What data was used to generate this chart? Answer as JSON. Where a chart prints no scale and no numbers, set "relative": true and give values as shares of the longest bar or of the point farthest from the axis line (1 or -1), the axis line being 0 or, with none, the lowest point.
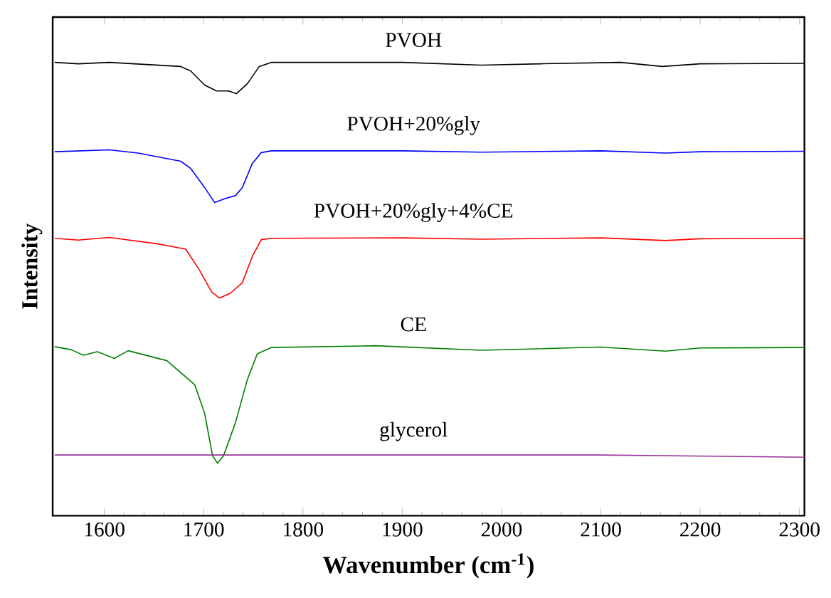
{
  "chart_data": {
    "type": "line",
    "relative": true,
    "xlabel": "Wavenumber (cm$^{-1}$)",
    "ylabel": "Intensity",
    "xlim": [
      1548,
      2305
    ],
    "xticks": [
      1600,
      1700,
      1800,
      1900,
      2000,
      2100,
      2200,
      2300
    ],
    "series": [
      {
        "name": "PVOH",
        "color": "#000000",
        "x": [
          1550,
          1574,
          1605,
          1677,
          1687,
          1701,
          1713,
          1725,
          1733,
          1744,
          1756,
          1768,
          1900,
          1980,
          2040,
          2120,
          2162,
          2200,
          2305
        ],
        "values": [
          1.0,
          0.997,
          1.0,
          0.991,
          0.981,
          0.95,
          0.937,
          0.937,
          0.931,
          0.953,
          0.991,
          1.0,
          1.0,
          0.994,
          0.997,
          1.0,
          0.991,
          0.997,
          0.998
        ]
      },
      {
        "name": "PVOH+20%gly",
        "color": "#0000ff",
        "x": [
          1550,
          1605,
          1634,
          1677,
          1687,
          1701,
          1711,
          1722,
          1732,
          1739,
          1749,
          1758,
          1768,
          1900,
          1980,
          2100,
          2165,
          2200,
          2305
        ],
        "values": [
          0.803,
          0.807,
          0.8,
          0.782,
          0.766,
          0.724,
          0.691,
          0.7,
          0.706,
          0.724,
          0.777,
          0.801,
          0.805,
          0.805,
          0.802,
          0.805,
          0.8,
          0.803,
          0.804
        ]
      },
      {
        "name": "PVOH+20%gly+4%CE",
        "color": "#ff0000",
        "x": [
          1550,
          1574,
          1605,
          1653,
          1682,
          1696,
          1708,
          1716,
          1727,
          1739,
          1749,
          1758,
          1768,
          1900,
          1980,
          2100,
          2165,
          2200,
          2305
        ],
        "values": [
          0.612,
          0.608,
          0.614,
          0.6,
          0.588,
          0.541,
          0.494,
          0.48,
          0.491,
          0.514,
          0.572,
          0.609,
          0.612,
          0.613,
          0.61,
          0.613,
          0.607,
          0.611,
          0.612
        ]
      },
      {
        "name": "CE",
        "color": "#008000",
        "x": [
          1550,
          1567,
          1579,
          1593,
          1610,
          1624,
          1663,
          1691,
          1701,
          1709,
          1714,
          1720,
          1732,
          1744,
          1754,
          1768,
          1873,
          1980,
          2100,
          2165,
          2200,
          2305
        ],
        "values": [
          0.373,
          0.366,
          0.354,
          0.362,
          0.347,
          0.364,
          0.342,
          0.289,
          0.226,
          0.132,
          0.116,
          0.132,
          0.205,
          0.3,
          0.357,
          0.371,
          0.375,
          0.365,
          0.372,
          0.363,
          0.37,
          0.371
        ]
      },
      {
        "name": "glycerol",
        "color": "#993399",
        "x": [
          1550,
          1700,
          1900,
          2100,
          2305
        ],
        "values": [
          0.134,
          0.134,
          0.134,
          0.134,
          0.129
        ]
      }
    ]
  }
}
